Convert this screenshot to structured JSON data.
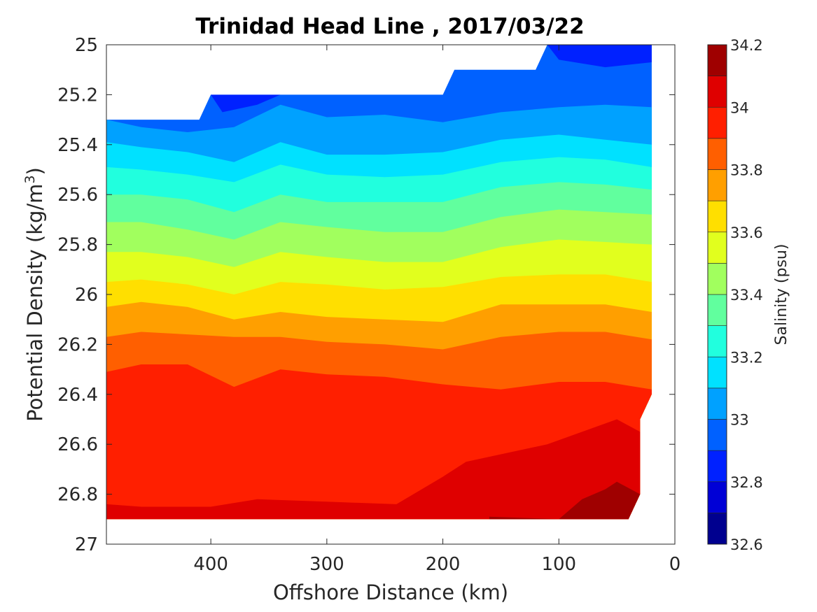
{
  "chart_data": {
    "type": "contour",
    "title": "Trinidad Head Line , 2017/03/22",
    "xlabel": "Offshore Distance (km)",
    "ylabel_main": "Potential Density (kg/m",
    "ylabel_sup": "3",
    "ylabel_close": ")",
    "xlim": [
      490,
      0
    ],
    "x_reversed": true,
    "ylim": [
      25,
      27
    ],
    "y_reversed": true,
    "x_ticks": [
      400,
      300,
      200,
      100,
      0
    ],
    "x_tick_labels": [
      "400",
      "300",
      "200",
      "100",
      "0"
    ],
    "y_ticks": [
      25,
      25.2,
      25.4,
      25.6,
      25.8,
      26,
      26.2,
      26.4,
      26.6,
      26.8,
      27
    ],
    "y_tick_labels": [
      "25",
      "25.2",
      "25.4",
      "25.6",
      "25.8",
      "26",
      "26.2",
      "26.4",
      "26.6",
      "26.8",
      "27"
    ],
    "data_top_boundary": [
      [
        490,
        25.3
      ],
      [
        410,
        25.3
      ],
      [
        400,
        25.2
      ],
      [
        200,
        25.2
      ],
      [
        190,
        25.1
      ],
      [
        120,
        25.1
      ],
      [
        110,
        25.0
      ],
      [
        20,
        25.0
      ]
    ],
    "data_bottom_boundary": [
      [
        490,
        26.9
      ],
      [
        40,
        26.9
      ],
      [
        30,
        26.8
      ],
      [
        30,
        26.5
      ],
      [
        20,
        26.4
      ],
      [
        20,
        25.0
      ]
    ],
    "isohalines": [
      {
        "salinity": 33.0,
        "points": [
          [
            490,
            25.3
          ],
          [
            460,
            25.33
          ],
          [
            420,
            25.35
          ],
          [
            380,
            25.33
          ],
          [
            340,
            25.24
          ],
          [
            300,
            25.29
          ],
          [
            250,
            25.28
          ],
          [
            200,
            25.31
          ],
          [
            150,
            25.27
          ],
          [
            100,
            25.25
          ],
          [
            60,
            25.24
          ],
          [
            20,
            25.25
          ]
        ]
      },
      {
        "salinity": 33.1,
        "points": [
          [
            490,
            25.39
          ],
          [
            460,
            25.41
          ],
          [
            420,
            25.43
          ],
          [
            380,
            25.47
          ],
          [
            340,
            25.39
          ],
          [
            300,
            25.44
          ],
          [
            250,
            25.44
          ],
          [
            200,
            25.43
          ],
          [
            150,
            25.38
          ],
          [
            100,
            25.36
          ],
          [
            60,
            25.38
          ],
          [
            20,
            25.4
          ]
        ]
      },
      {
        "salinity": 33.2,
        "points": [
          [
            490,
            25.49
          ],
          [
            460,
            25.5
          ],
          [
            420,
            25.52
          ],
          [
            380,
            25.55
          ],
          [
            340,
            25.48
          ],
          [
            300,
            25.52
          ],
          [
            250,
            25.53
          ],
          [
            200,
            25.52
          ],
          [
            150,
            25.47
          ],
          [
            100,
            25.45
          ],
          [
            60,
            25.46
          ],
          [
            20,
            25.49
          ]
        ]
      },
      {
        "salinity": 33.3,
        "points": [
          [
            490,
            25.6
          ],
          [
            460,
            25.6
          ],
          [
            420,
            25.62
          ],
          [
            380,
            25.67
          ],
          [
            340,
            25.6
          ],
          [
            300,
            25.63
          ],
          [
            250,
            25.63
          ],
          [
            200,
            25.63
          ],
          [
            150,
            25.57
          ],
          [
            100,
            25.55
          ],
          [
            60,
            25.56
          ],
          [
            20,
            25.58
          ]
        ]
      },
      {
        "salinity": 33.4,
        "points": [
          [
            490,
            25.71
          ],
          [
            460,
            25.71
          ],
          [
            420,
            25.74
          ],
          [
            380,
            25.78
          ],
          [
            340,
            25.71
          ],
          [
            300,
            25.73
          ],
          [
            250,
            25.75
          ],
          [
            200,
            25.75
          ],
          [
            150,
            25.69
          ],
          [
            100,
            25.66
          ],
          [
            60,
            25.67
          ],
          [
            20,
            25.68
          ]
        ]
      },
      {
        "salinity": 33.5,
        "points": [
          [
            490,
            25.83
          ],
          [
            460,
            25.83
          ],
          [
            420,
            25.85
          ],
          [
            380,
            25.89
          ],
          [
            340,
            25.83
          ],
          [
            300,
            25.85
          ],
          [
            250,
            25.87
          ],
          [
            200,
            25.87
          ],
          [
            150,
            25.81
          ],
          [
            100,
            25.78
          ],
          [
            60,
            25.79
          ],
          [
            20,
            25.8
          ]
        ]
      },
      {
        "salinity": 33.6,
        "points": [
          [
            490,
            25.95
          ],
          [
            460,
            25.94
          ],
          [
            420,
            25.96
          ],
          [
            380,
            26.0
          ],
          [
            340,
            25.95
          ],
          [
            300,
            25.96
          ],
          [
            250,
            25.98
          ],
          [
            200,
            25.97
          ],
          [
            150,
            25.93
          ],
          [
            100,
            25.92
          ],
          [
            60,
            25.92
          ],
          [
            20,
            25.95
          ]
        ]
      },
      {
        "salinity": 33.7,
        "points": [
          [
            490,
            26.05
          ],
          [
            460,
            26.03
          ],
          [
            420,
            26.05
          ],
          [
            380,
            26.1
          ],
          [
            340,
            26.07
          ],
          [
            300,
            26.09
          ],
          [
            250,
            26.1
          ],
          [
            200,
            26.11
          ],
          [
            150,
            26.04
          ],
          [
            100,
            26.04
          ],
          [
            60,
            26.04
          ],
          [
            20,
            26.07
          ]
        ]
      },
      {
        "salinity": 33.8,
        "points": [
          [
            490,
            26.17
          ],
          [
            460,
            26.15
          ],
          [
            420,
            26.16
          ],
          [
            380,
            26.17
          ],
          [
            340,
            26.17
          ],
          [
            300,
            26.19
          ],
          [
            250,
            26.2
          ],
          [
            200,
            26.22
          ],
          [
            150,
            26.17
          ],
          [
            100,
            26.15
          ],
          [
            60,
            26.15
          ],
          [
            20,
            26.18
          ]
        ]
      },
      {
        "salinity": 33.9,
        "points": [
          [
            490,
            26.31
          ],
          [
            460,
            26.28
          ],
          [
            420,
            26.28
          ],
          [
            380,
            26.37
          ],
          [
            340,
            26.3
          ],
          [
            300,
            26.32
          ],
          [
            250,
            26.33
          ],
          [
            200,
            26.36
          ],
          [
            150,
            26.38
          ],
          [
            100,
            26.35
          ],
          [
            60,
            26.35
          ],
          [
            20,
            26.38
          ]
        ]
      },
      {
        "salinity": 34.0,
        "points": [
          [
            490,
            26.84
          ],
          [
            460,
            26.85
          ],
          [
            400,
            26.85
          ],
          [
            360,
            26.82
          ],
          [
            300,
            26.83
          ],
          [
            240,
            26.84
          ],
          [
            200,
            26.73
          ],
          [
            180,
            26.67
          ],
          [
            150,
            26.64
          ],
          [
            110,
            26.6
          ],
          [
            80,
            26.55
          ],
          [
            50,
            26.5
          ],
          [
            30,
            26.55
          ],
          [
            30,
            26.5
          ]
        ]
      },
      {
        "salinity": 34.1,
        "points": [
          [
            160,
            26.89
          ],
          [
            100,
            26.9
          ],
          [
            80,
            26.82
          ],
          [
            60,
            26.78
          ],
          [
            50,
            26.75
          ],
          [
            30,
            26.8
          ]
        ]
      }
    ],
    "color_levels": [
      32.6,
      32.7,
      32.8,
      32.9,
      33.0,
      33.1,
      33.2,
      33.3,
      33.4,
      33.5,
      33.6,
      33.7,
      33.8,
      33.9,
      34.0,
      34.1,
      34.2
    ],
    "colors": [
      "#00008f",
      "#0000d6",
      "#0021ff",
      "#0061ff",
      "#00a1ff",
      "#00e1ff",
      "#21ffde",
      "#61ff9e",
      "#a1ff5e",
      "#e1ff1e",
      "#ffdf00",
      "#ff9f00",
      "#ff5f00",
      "#ff1f00",
      "#df0000",
      "#9f0000"
    ],
    "colorbar": {
      "label": "Salinity (psu)",
      "range": [
        32.6,
        34.2
      ],
      "ticks": [
        32.6,
        32.8,
        33,
        33.2,
        33.4,
        33.6,
        33.8,
        34,
        34.2
      ],
      "tick_labels": [
        "32.6",
        "32.8",
        "33",
        "33.2",
        "33.4",
        "33.6",
        "33.8",
        "34",
        "34.2"
      ]
    }
  }
}
